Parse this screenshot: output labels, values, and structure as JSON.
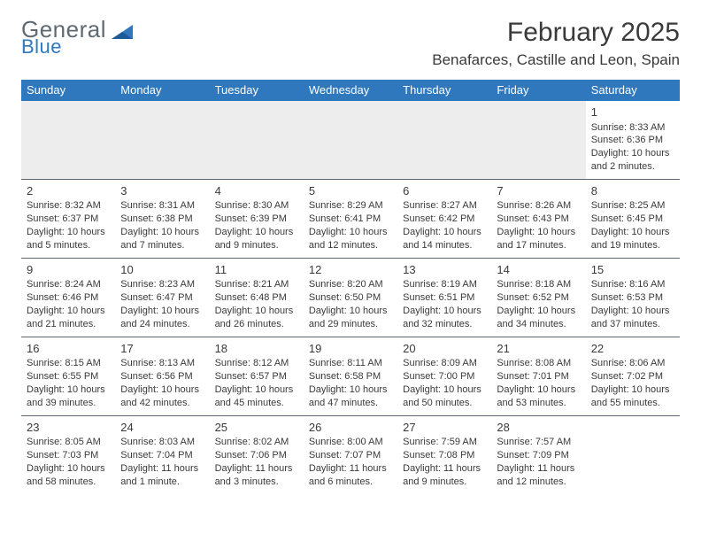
{
  "brand": {
    "line1": "General",
    "line2": "Blue",
    "line1_color": "#5f6a72",
    "line2_color": "#2f78bd"
  },
  "title": "February 2025",
  "location": "Benafarces, Castille and Leon, Spain",
  "colors": {
    "header_bg": "#2f78bd",
    "header_fg": "#ffffff",
    "rule": "#5b6770",
    "alt_row": "#ededed",
    "text": "#3a3a3a"
  },
  "dow": [
    "Sunday",
    "Monday",
    "Tuesday",
    "Wednesday",
    "Thursday",
    "Friday",
    "Saturday"
  ],
  "weeks": [
    [
      null,
      null,
      null,
      null,
      null,
      null,
      {
        "n": "1",
        "sunrise": "Sunrise: 8:33 AM",
        "sunset": "Sunset: 6:36 PM",
        "d1": "Daylight: 10 hours",
        "d2": "and 2 minutes."
      }
    ],
    [
      {
        "n": "2",
        "sunrise": "Sunrise: 8:32 AM",
        "sunset": "Sunset: 6:37 PM",
        "d1": "Daylight: 10 hours",
        "d2": "and 5 minutes."
      },
      {
        "n": "3",
        "sunrise": "Sunrise: 8:31 AM",
        "sunset": "Sunset: 6:38 PM",
        "d1": "Daylight: 10 hours",
        "d2": "and 7 minutes."
      },
      {
        "n": "4",
        "sunrise": "Sunrise: 8:30 AM",
        "sunset": "Sunset: 6:39 PM",
        "d1": "Daylight: 10 hours",
        "d2": "and 9 minutes."
      },
      {
        "n": "5",
        "sunrise": "Sunrise: 8:29 AM",
        "sunset": "Sunset: 6:41 PM",
        "d1": "Daylight: 10 hours",
        "d2": "and 12 minutes."
      },
      {
        "n": "6",
        "sunrise": "Sunrise: 8:27 AM",
        "sunset": "Sunset: 6:42 PM",
        "d1": "Daylight: 10 hours",
        "d2": "and 14 minutes."
      },
      {
        "n": "7",
        "sunrise": "Sunrise: 8:26 AM",
        "sunset": "Sunset: 6:43 PM",
        "d1": "Daylight: 10 hours",
        "d2": "and 17 minutes."
      },
      {
        "n": "8",
        "sunrise": "Sunrise: 8:25 AM",
        "sunset": "Sunset: 6:45 PM",
        "d1": "Daylight: 10 hours",
        "d2": "and 19 minutes."
      }
    ],
    [
      {
        "n": "9",
        "sunrise": "Sunrise: 8:24 AM",
        "sunset": "Sunset: 6:46 PM",
        "d1": "Daylight: 10 hours",
        "d2": "and 21 minutes."
      },
      {
        "n": "10",
        "sunrise": "Sunrise: 8:23 AM",
        "sunset": "Sunset: 6:47 PM",
        "d1": "Daylight: 10 hours",
        "d2": "and 24 minutes."
      },
      {
        "n": "11",
        "sunrise": "Sunrise: 8:21 AM",
        "sunset": "Sunset: 6:48 PM",
        "d1": "Daylight: 10 hours",
        "d2": "and 26 minutes."
      },
      {
        "n": "12",
        "sunrise": "Sunrise: 8:20 AM",
        "sunset": "Sunset: 6:50 PM",
        "d1": "Daylight: 10 hours",
        "d2": "and 29 minutes."
      },
      {
        "n": "13",
        "sunrise": "Sunrise: 8:19 AM",
        "sunset": "Sunset: 6:51 PM",
        "d1": "Daylight: 10 hours",
        "d2": "and 32 minutes."
      },
      {
        "n": "14",
        "sunrise": "Sunrise: 8:18 AM",
        "sunset": "Sunset: 6:52 PM",
        "d1": "Daylight: 10 hours",
        "d2": "and 34 minutes."
      },
      {
        "n": "15",
        "sunrise": "Sunrise: 8:16 AM",
        "sunset": "Sunset: 6:53 PM",
        "d1": "Daylight: 10 hours",
        "d2": "and 37 minutes."
      }
    ],
    [
      {
        "n": "16",
        "sunrise": "Sunrise: 8:15 AM",
        "sunset": "Sunset: 6:55 PM",
        "d1": "Daylight: 10 hours",
        "d2": "and 39 minutes."
      },
      {
        "n": "17",
        "sunrise": "Sunrise: 8:13 AM",
        "sunset": "Sunset: 6:56 PM",
        "d1": "Daylight: 10 hours",
        "d2": "and 42 minutes."
      },
      {
        "n": "18",
        "sunrise": "Sunrise: 8:12 AM",
        "sunset": "Sunset: 6:57 PM",
        "d1": "Daylight: 10 hours",
        "d2": "and 45 minutes."
      },
      {
        "n": "19",
        "sunrise": "Sunrise: 8:11 AM",
        "sunset": "Sunset: 6:58 PM",
        "d1": "Daylight: 10 hours",
        "d2": "and 47 minutes."
      },
      {
        "n": "20",
        "sunrise": "Sunrise: 8:09 AM",
        "sunset": "Sunset: 7:00 PM",
        "d1": "Daylight: 10 hours",
        "d2": "and 50 minutes."
      },
      {
        "n": "21",
        "sunrise": "Sunrise: 8:08 AM",
        "sunset": "Sunset: 7:01 PM",
        "d1": "Daylight: 10 hours",
        "d2": "and 53 minutes."
      },
      {
        "n": "22",
        "sunrise": "Sunrise: 8:06 AM",
        "sunset": "Sunset: 7:02 PM",
        "d1": "Daylight: 10 hours",
        "d2": "and 55 minutes."
      }
    ],
    [
      {
        "n": "23",
        "sunrise": "Sunrise: 8:05 AM",
        "sunset": "Sunset: 7:03 PM",
        "d1": "Daylight: 10 hours",
        "d2": "and 58 minutes."
      },
      {
        "n": "24",
        "sunrise": "Sunrise: 8:03 AM",
        "sunset": "Sunset: 7:04 PM",
        "d1": "Daylight: 11 hours",
        "d2": "and 1 minute."
      },
      {
        "n": "25",
        "sunrise": "Sunrise: 8:02 AM",
        "sunset": "Sunset: 7:06 PM",
        "d1": "Daylight: 11 hours",
        "d2": "and 3 minutes."
      },
      {
        "n": "26",
        "sunrise": "Sunrise: 8:00 AM",
        "sunset": "Sunset: 7:07 PM",
        "d1": "Daylight: 11 hours",
        "d2": "and 6 minutes."
      },
      {
        "n": "27",
        "sunrise": "Sunrise: 7:59 AM",
        "sunset": "Sunset: 7:08 PM",
        "d1": "Daylight: 11 hours",
        "d2": "and 9 minutes."
      },
      {
        "n": "28",
        "sunrise": "Sunrise: 7:57 AM",
        "sunset": "Sunset: 7:09 PM",
        "d1": "Daylight: 11 hours",
        "d2": "and 12 minutes."
      },
      null
    ]
  ]
}
